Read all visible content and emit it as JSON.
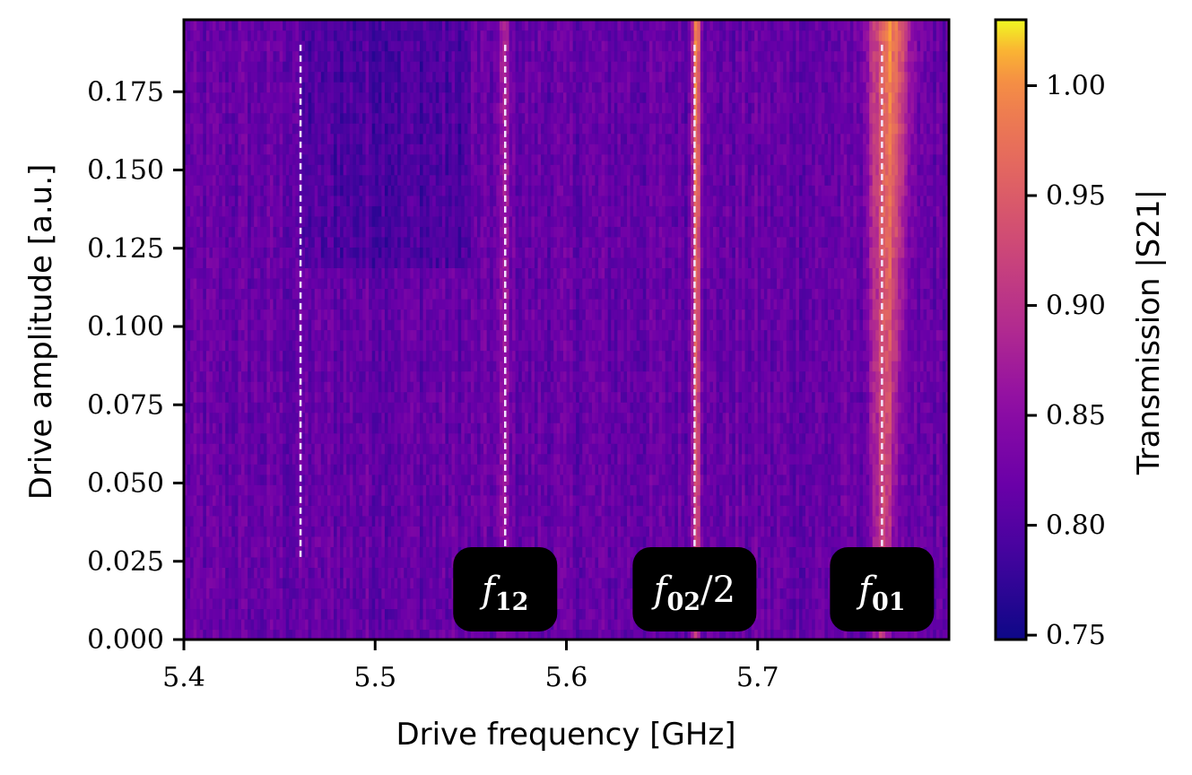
{
  "chart_data": {
    "type": "heatmap",
    "xlabel": "Drive frequency [GHz]",
    "ylabel": "Drive amplitude [a.u.]",
    "xlim": [
      5.4,
      5.8
    ],
    "ylim": [
      0.0,
      0.198
    ],
    "x_ticks": [
      5.4,
      5.5,
      5.6,
      5.7
    ],
    "x_tick_labels": [
      "5.4",
      "5.5",
      "5.6",
      "5.7"
    ],
    "y_ticks": [
      0.0,
      0.025,
      0.05,
      0.075,
      0.1,
      0.125,
      0.15,
      0.175
    ],
    "y_tick_labels": [
      "0.000",
      "0.025",
      "0.050",
      "0.075",
      "0.100",
      "0.125",
      "0.150",
      "0.175"
    ],
    "colorbar": {
      "label": "Transmission |S21|",
      "range": [
        0.748,
        1.03
      ],
      "ticks": [
        0.75,
        0.8,
        0.85,
        0.9,
        0.95,
        1.0
      ],
      "tick_labels": [
        "0.75",
        "0.80",
        "0.85",
        "0.90",
        "0.95",
        "1.00"
      ],
      "colormap": "plasma"
    },
    "background_level": 0.815,
    "resonances": [
      {
        "label": "f12",
        "freq": 5.568,
        "peak": 0.875
      },
      {
        "label": "f02/2",
        "freq": 5.668,
        "peak": 1.02
      },
      {
        "label": "f01",
        "freq": 5.765,
        "peak": 0.99
      }
    ],
    "dashed_markers": [
      {
        "freq": 5.461,
        "y_from": 0.025,
        "y_to": 0.19
      },
      {
        "freq": 5.568,
        "y_from": 0.025,
        "y_to": 0.19
      },
      {
        "freq": 5.667,
        "y_from": 0.025,
        "y_to": 0.19
      },
      {
        "freq": 5.765,
        "y_from": 0.025,
        "y_to": 0.19
      }
    ],
    "annotations": [
      {
        "base": "f",
        "sub": "12",
        "tail": "",
        "freq": 5.568
      },
      {
        "base": "f",
        "sub": "02",
        "tail": "/2",
        "freq": 5.667
      },
      {
        "base": "f",
        "sub": "01",
        "tail": "",
        "freq": 5.765
      }
    ]
  }
}
